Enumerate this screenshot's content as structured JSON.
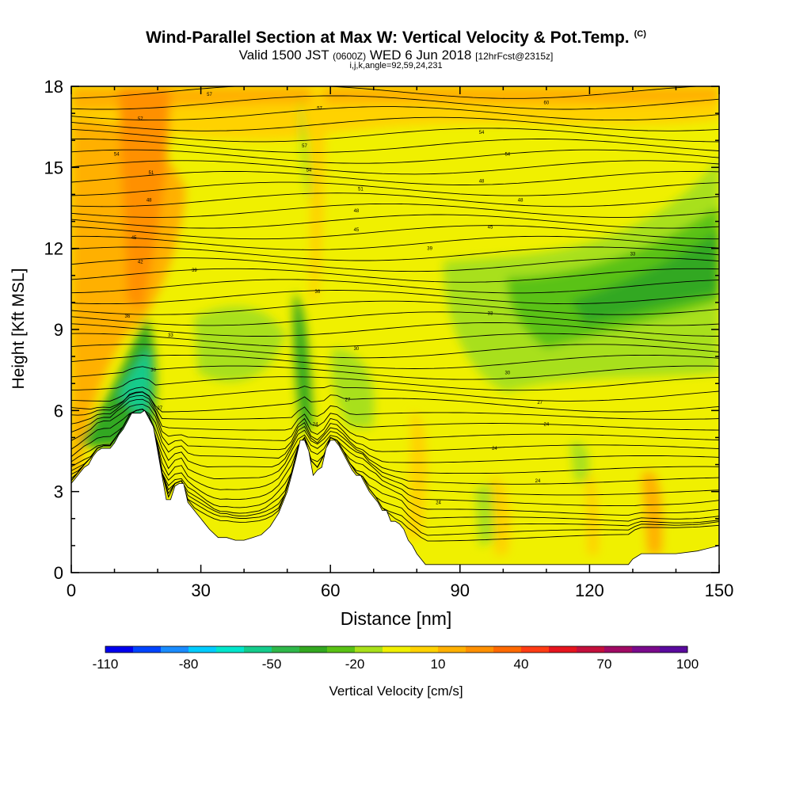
{
  "header": {
    "title": "Wind-Parallel Section at Max W: Vertical Velocity & Pot.Temp.",
    "title_suffix": "(C)",
    "valid_prefix": "Valid 1500 JST",
    "valid_utc": "(0600Z)",
    "valid_date": "WED 6 Jun 2018",
    "forecast": "[12hrFcst@2315z]",
    "indices": "i,j,k,angle=92,59,24,231"
  },
  "chart_data": {
    "type": "heatmap",
    "xlabel": "Distance [nm]",
    "ylabel": "Height [Kft MSL]",
    "xlim": [
      0,
      150
    ],
    "ylim": [
      0,
      18
    ],
    "x_ticks": [
      0,
      30,
      60,
      90,
      120,
      150
    ],
    "y_ticks": [
      0,
      3,
      6,
      9,
      12,
      15,
      18
    ],
    "terrain": {
      "x": [
        0,
        1,
        2,
        3,
        4,
        5,
        6,
        7,
        8,
        9,
        10,
        11,
        12,
        13,
        14,
        15,
        16,
        17,
        18,
        19,
        20,
        21,
        22,
        23,
        24,
        25,
        26,
        27,
        28,
        29,
        30,
        32,
        34,
        36,
        38,
        40,
        42,
        44,
        46,
        48,
        50,
        52,
        53,
        54,
        55,
        56,
        57,
        58,
        59,
        60,
        61,
        62,
        63,
        64,
        65,
        66,
        67,
        68,
        69,
        70,
        71,
        72,
        73,
        74,
        75,
        76,
        77,
        78,
        79,
        80,
        81,
        82,
        84,
        86,
        90,
        95,
        100,
        105,
        110,
        115,
        120,
        125,
        129,
        130,
        132,
        134,
        136,
        138,
        140,
        145,
        150
      ],
      "height_kft": [
        3.3,
        3.5,
        3.7,
        3.9,
        4.0,
        4.3,
        4.5,
        4.6,
        4.6,
        4.6,
        4.8,
        5.1,
        5.3,
        5.6,
        5.9,
        5.9,
        5.9,
        6.0,
        5.7,
        5.4,
        4.5,
        3.6,
        2.7,
        2.7,
        3.2,
        3.3,
        3.3,
        2.6,
        2.4,
        2.2,
        2.0,
        1.6,
        1.3,
        1.3,
        1.2,
        1.2,
        1.3,
        1.4,
        1.7,
        2.2,
        3.0,
        4.2,
        4.9,
        4.9,
        4.5,
        3.6,
        3.8,
        3.9,
        4.6,
        4.9,
        4.9,
        4.7,
        4.4,
        4.1,
        3.8,
        3.6,
        3.6,
        3.3,
        3.0,
        2.8,
        2.6,
        2.3,
        2.3,
        1.9,
        1.9,
        1.8,
        1.6,
        1.2,
        1.0,
        0.7,
        0.5,
        0.3,
        0.3,
        0.3,
        0.3,
        0.3,
        0.3,
        0.3,
        0.3,
        0.3,
        0.3,
        0.3,
        0.3,
        0.5,
        0.7,
        0.7,
        0.7,
        0.7,
        0.7,
        0.8,
        1.0
      ]
    },
    "isentropes": {
      "labels": [
        {
          "text": "57",
          "x": 32,
          "y": 17.7
        },
        {
          "text": "57",
          "x": 57.5,
          "y": 17.2
        },
        {
          "text": "60",
          "x": 110,
          "y": 17.4
        },
        {
          "text": "57",
          "x": 16,
          "y": 16.8
        },
        {
          "text": "57",
          "x": 54,
          "y": 15.8
        },
        {
          "text": "54",
          "x": 95,
          "y": 16.3
        },
        {
          "text": "54",
          "x": 10.5,
          "y": 15.5
        },
        {
          "text": "54",
          "x": 55,
          "y": 14.9
        },
        {
          "text": "54",
          "x": 101,
          "y": 15.5
        },
        {
          "text": "51",
          "x": 18.5,
          "y": 14.8
        },
        {
          "text": "51",
          "x": 67,
          "y": 14.2
        },
        {
          "text": "48",
          "x": 95,
          "y": 14.5
        },
        {
          "text": "48",
          "x": 18,
          "y": 13.8
        },
        {
          "text": "48",
          "x": 66,
          "y": 13.4
        },
        {
          "text": "48",
          "x": 104,
          "y": 13.8
        },
        {
          "text": "45",
          "x": 14.5,
          "y": 12.4
        },
        {
          "text": "45",
          "x": 66,
          "y": 12.7
        },
        {
          "text": "45",
          "x": 97,
          "y": 12.8
        },
        {
          "text": "42",
          "x": 16,
          "y": 11.5
        },
        {
          "text": "39",
          "x": 83,
          "y": 12.0
        },
        {
          "text": "33",
          "x": 130,
          "y": 11.8
        },
        {
          "text": "39",
          "x": 28.5,
          "y": 11.2
        },
        {
          "text": "36",
          "x": 57,
          "y": 10.4
        },
        {
          "text": "36",
          "x": 13,
          "y": 9.5
        },
        {
          "text": "33",
          "x": 97,
          "y": 9.6
        },
        {
          "text": "33",
          "x": 23,
          "y": 8.8
        },
        {
          "text": "30",
          "x": 66,
          "y": 8.3
        },
        {
          "text": "30",
          "x": 19,
          "y": 7.5
        },
        {
          "text": "30",
          "x": 101,
          "y": 7.4
        },
        {
          "text": "27",
          "x": 20.5,
          "y": 6.1
        },
        {
          "text": "27",
          "x": 64,
          "y": 6.4
        },
        {
          "text": "27",
          "x": 108.5,
          "y": 6.3
        },
        {
          "text": "24",
          "x": 56.5,
          "y": 5.5
        },
        {
          "text": "24",
          "x": 110,
          "y": 5.5
        },
        {
          "text": "24",
          "x": 98,
          "y": 4.6
        },
        {
          "text": "24",
          "x": 108,
          "y": 3.4
        },
        {
          "text": "24",
          "x": 85,
          "y": 2.6
        }
      ]
    },
    "colorbar": {
      "label": "Vertical Velocity [cm/s]",
      "ticks": [
        -110,
        -80,
        -50,
        -20,
        10,
        40,
        70,
        100
      ],
      "colors": [
        "#0000ee",
        "#0044ff",
        "#1a8cff",
        "#00ccff",
        "#00e6cc",
        "#14cc8c",
        "#2fb84a",
        "#33a820",
        "#5ac214",
        "#a8e01a",
        "#f0f000",
        "#ffd200",
        "#ffb000",
        "#ff9000",
        "#ff6a00",
        "#ff3c14",
        "#e6141e",
        "#c30f3c",
        "#a00a64",
        "#7a0a8c",
        "#5a0a9e"
      ]
    }
  }
}
